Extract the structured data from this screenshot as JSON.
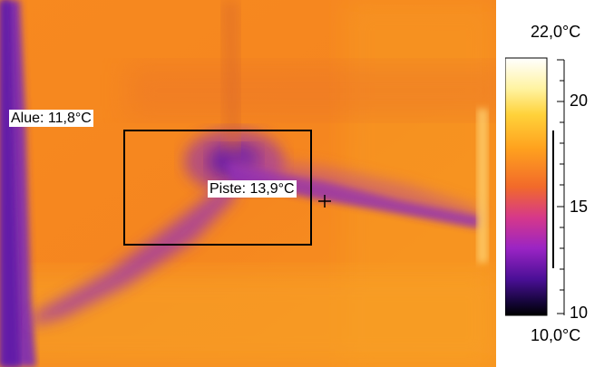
{
  "area_measure": {
    "label": "Alue: 11,8°C"
  },
  "spot_measure": {
    "label": "Piste: 13,9°C"
  },
  "temperature_scale": {
    "max_label": "22,0°C",
    "min_label": "10,0°C",
    "ticks": [
      "20",
      "15",
      "10"
    ],
    "palette": "iron",
    "colors": [
      "#ffffff",
      "#ffe14a",
      "#ffa41f",
      "#f36b2a",
      "#d43a8a",
      "#8b1fcc",
      "#3a0a80",
      "#000000"
    ]
  }
}
